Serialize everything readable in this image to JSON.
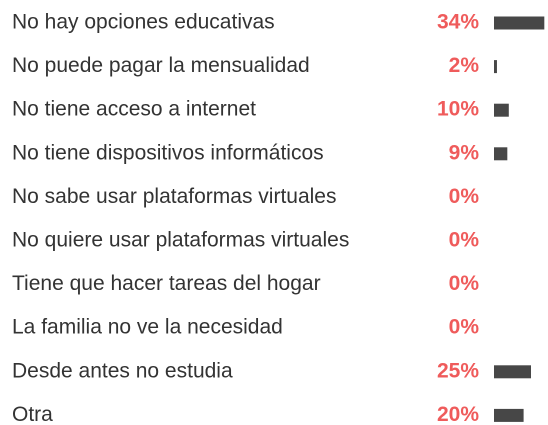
{
  "chart_data": {
    "type": "bar",
    "orientation": "horizontal",
    "categories": [
      "No hay opciones educativas",
      "No puede pagar la mensualidad",
      "No tiene acceso a internet",
      "No tiene dispositivos informáticos",
      "No sabe usar plataformas virtuales",
      "No quiere usar plataformas virtuales",
      "Tiene que hacer tareas del hogar",
      "La familia no ve la necesidad",
      "Desde antes no estudia",
      "Otra"
    ],
    "values": [
      34,
      2,
      10,
      9,
      0,
      0,
      0,
      0,
      25,
      20
    ],
    "value_labels": [
      "34%",
      "2%",
      "10%",
      "9%",
      "0%",
      "0%",
      "0%",
      "0%",
      "25%",
      "20%"
    ],
    "color": "#474747",
    "label_color": "#ef5b5b"
  }
}
